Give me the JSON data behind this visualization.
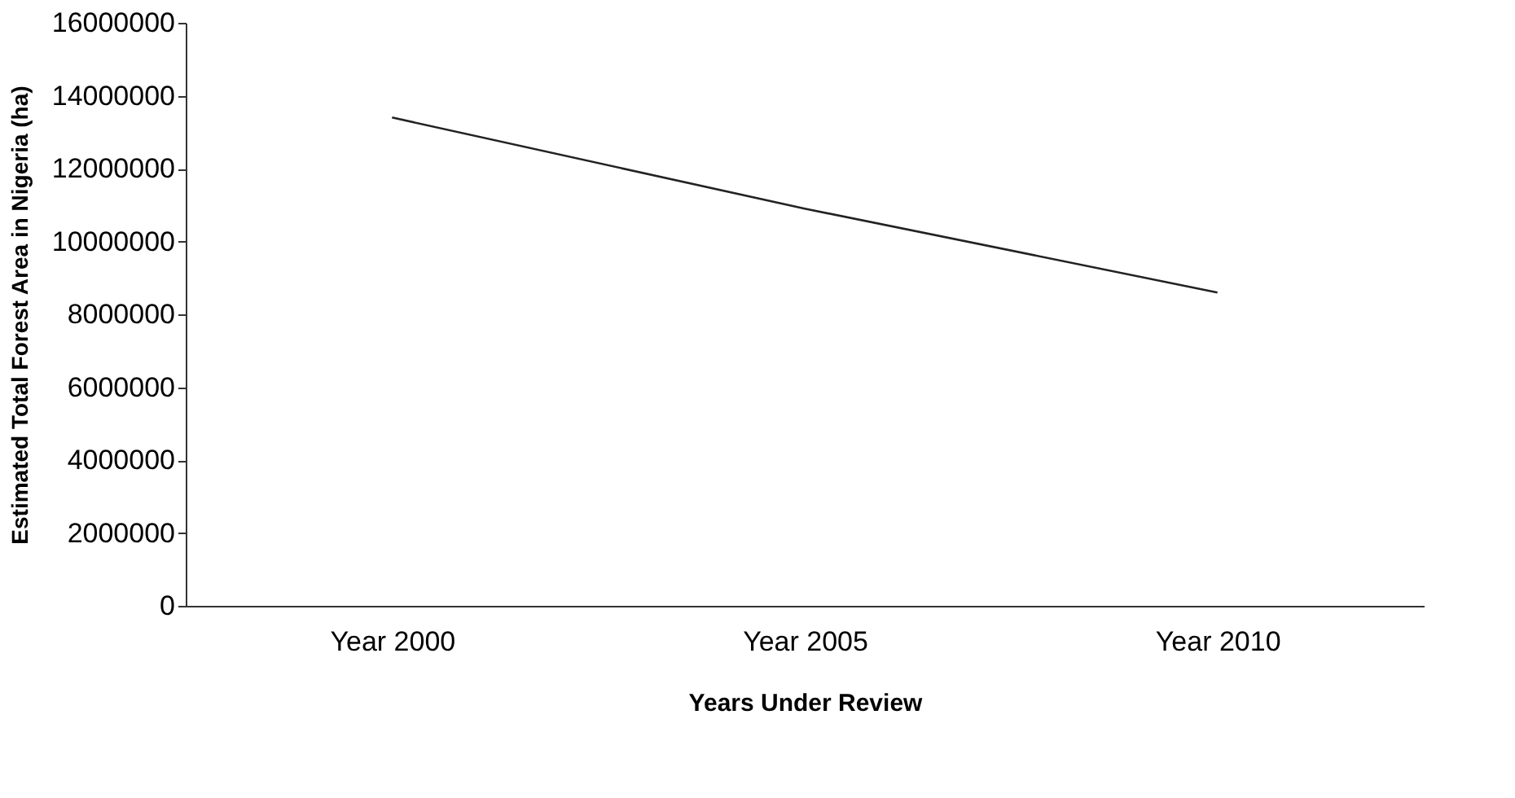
{
  "chart_data": {
    "type": "line",
    "xlabel": "Years Under Review",
    "ylabel": "Estimated Total Forest Area in Nigeria (ha)",
    "categories": [
      "Year 2000",
      "Year 2005",
      "Year 2010"
    ],
    "series": [
      {
        "color": "#222222",
        "values": [
          13400000,
          10900000,
          8600000
        ]
      }
    ],
    "ylim": [
      0,
      16000000
    ],
    "yticks": [
      0,
      2000000,
      4000000,
      6000000,
      8000000,
      10000000,
      12000000,
      14000000,
      16000000
    ],
    "grid": false,
    "marker": "none",
    "line_style": "solid"
  }
}
